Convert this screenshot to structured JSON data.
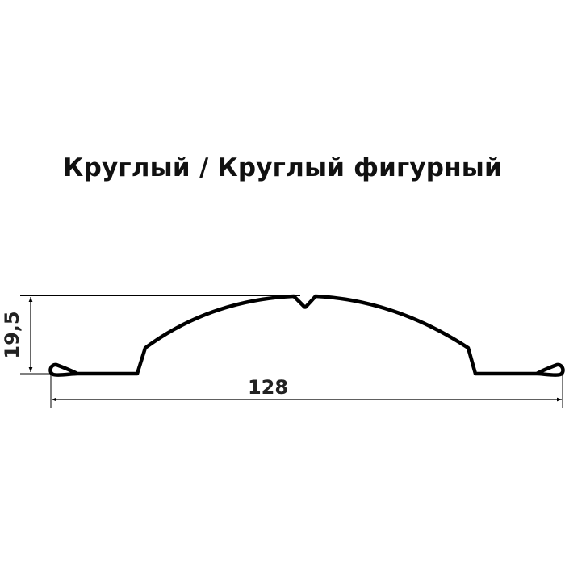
{
  "title": "Круглый / Круглый фигурный",
  "dimensions": {
    "height": "19,5",
    "width": "128"
  },
  "colors": {
    "profile": "#000000",
    "dimension_lines": "#000000",
    "text": "#222222"
  }
}
